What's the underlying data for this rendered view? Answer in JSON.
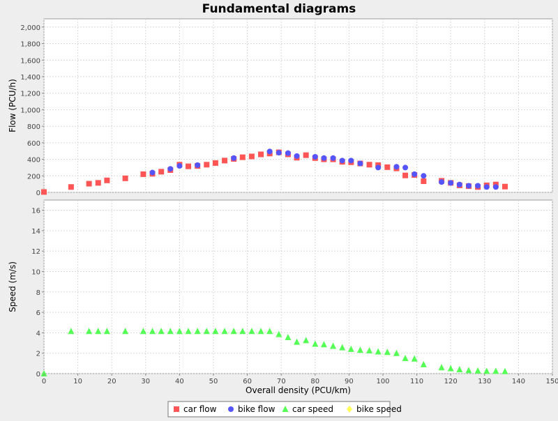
{
  "chart_data": {
    "type": "scatter",
    "title": "Fundamental diagrams",
    "xlabel": "Overall density (PCU/km)",
    "xlim": [
      0,
      150
    ],
    "xticks": [
      0,
      10,
      20,
      30,
      40,
      50,
      60,
      70,
      80,
      90,
      100,
      110,
      120,
      130,
      140,
      150
    ],
    "grid": true,
    "legend_position": "bottom-center",
    "subplots": [
      {
        "ylabel": "Flow (PCU/h)",
        "ylim": [
          0,
          2100
        ],
        "yticks": [
          0,
          200,
          400,
          600,
          800,
          1000,
          1200,
          1400,
          1600,
          1800,
          2000
        ],
        "ytick_labels": [
          "0",
          "200",
          "400",
          "600",
          "800",
          "1,000",
          "1,200",
          "1,400",
          "1,600",
          "1,800",
          "2,000"
        ]
      },
      {
        "ylabel": "Speed (m/s)",
        "ylim": [
          0,
          17
        ],
        "yticks": [
          0,
          2,
          4,
          6,
          8,
          10,
          12,
          14,
          16
        ],
        "ytick_labels": [
          "0",
          "2",
          "4",
          "6",
          "8",
          "10",
          "12",
          "14",
          "16"
        ]
      }
    ],
    "series": [
      {
        "name": "car flow",
        "subplot": 0,
        "marker": "square",
        "color": "#ff5555",
        "points": [
          [
            0,
            5
          ],
          [
            8,
            65
          ],
          [
            13.3,
            105
          ],
          [
            16,
            115
          ],
          [
            18.6,
            145
          ],
          [
            24,
            170
          ],
          [
            29.3,
            220
          ],
          [
            32,
            225
          ],
          [
            34.6,
            250
          ],
          [
            37.3,
            270
          ],
          [
            40,
            335
          ],
          [
            42.6,
            315
          ],
          [
            45.3,
            320
          ],
          [
            48,
            335
          ],
          [
            50.6,
            355
          ],
          [
            53.3,
            385
          ],
          [
            56,
            405
          ],
          [
            58.6,
            425
          ],
          [
            61.3,
            435
          ],
          [
            64,
            460
          ],
          [
            66.6,
            470
          ],
          [
            69.3,
            485
          ],
          [
            72,
            460
          ],
          [
            74.6,
            420
          ],
          [
            77.3,
            450
          ],
          [
            80,
            415
          ],
          [
            82.6,
            400
          ],
          [
            85.3,
            400
          ],
          [
            88,
            370
          ],
          [
            90.6,
            365
          ],
          [
            93.3,
            350
          ],
          [
            96,
            335
          ],
          [
            98.6,
            330
          ],
          [
            101.3,
            305
          ],
          [
            104,
            290
          ],
          [
            106.6,
            205
          ],
          [
            109.3,
            210
          ],
          [
            112,
            135
          ],
          [
            117.3,
            140
          ],
          [
            120,
            115
          ],
          [
            122.6,
            85
          ],
          [
            125.3,
            75
          ],
          [
            128,
            65
          ],
          [
            130.6,
            85
          ],
          [
            133.3,
            95
          ],
          [
            136,
            70
          ]
        ]
      },
      {
        "name": "bike flow",
        "subplot": 0,
        "marker": "circle",
        "color": "#5555ff",
        "points": [
          [
            32,
            240
          ],
          [
            37.3,
            285
          ],
          [
            40,
            320
          ],
          [
            45.3,
            330
          ],
          [
            56,
            415
          ],
          [
            66.6,
            495
          ],
          [
            69.3,
            480
          ],
          [
            72,
            475
          ],
          [
            74.6,
            440
          ],
          [
            80,
            430
          ],
          [
            82.6,
            415
          ],
          [
            85.3,
            415
          ],
          [
            88,
            385
          ],
          [
            90.6,
            385
          ],
          [
            93.3,
            350
          ],
          [
            98.6,
            300
          ],
          [
            104,
            310
          ],
          [
            106.6,
            300
          ],
          [
            109.3,
            220
          ],
          [
            112,
            200
          ],
          [
            117.3,
            125
          ],
          [
            120,
            115
          ],
          [
            122.6,
            95
          ],
          [
            125.3,
            80
          ],
          [
            128,
            80
          ],
          [
            130.6,
            65
          ],
          [
            133.3,
            65
          ]
        ]
      },
      {
        "name": "car speed",
        "subplot": 1,
        "marker": "triangle",
        "color": "#55ff55",
        "points": [
          [
            0,
            0
          ],
          [
            8,
            4.15
          ],
          [
            13.3,
            4.15
          ],
          [
            16,
            4.15
          ],
          [
            18.6,
            4.15
          ],
          [
            24,
            4.15
          ],
          [
            29.3,
            4.15
          ],
          [
            32,
            4.15
          ],
          [
            34.6,
            4.15
          ],
          [
            37.3,
            4.15
          ],
          [
            40,
            4.15
          ],
          [
            42.6,
            4.15
          ],
          [
            45.3,
            4.15
          ],
          [
            48,
            4.15
          ],
          [
            50.6,
            4.15
          ],
          [
            53.3,
            4.15
          ],
          [
            56,
            4.15
          ],
          [
            58.6,
            4.15
          ],
          [
            61.3,
            4.15
          ],
          [
            64,
            4.15
          ],
          [
            66.6,
            4.15
          ],
          [
            69.3,
            3.85
          ],
          [
            72,
            3.55
          ],
          [
            74.6,
            3.1
          ],
          [
            77.3,
            3.25
          ],
          [
            80,
            2.9
          ],
          [
            82.6,
            2.85
          ],
          [
            85.3,
            2.7
          ],
          [
            88,
            2.55
          ],
          [
            90.6,
            2.4
          ],
          [
            93.3,
            2.3
          ],
          [
            96,
            2.25
          ],
          [
            98.6,
            2.15
          ],
          [
            101.3,
            2.1
          ],
          [
            104,
            2.0
          ],
          [
            106.6,
            1.5
          ],
          [
            109.3,
            1.45
          ],
          [
            112,
            0.9
          ],
          [
            117.3,
            0.6
          ],
          [
            120,
            0.5
          ],
          [
            122.6,
            0.4
          ],
          [
            125.3,
            0.32
          ],
          [
            128,
            0.28
          ],
          [
            130.6,
            0.25
          ],
          [
            133.3,
            0.25
          ],
          [
            136,
            0.22
          ]
        ]
      },
      {
        "name": "bike speed",
        "subplot": 1,
        "marker": "diamond",
        "color": "#ffff55",
        "points": []
      }
    ]
  }
}
